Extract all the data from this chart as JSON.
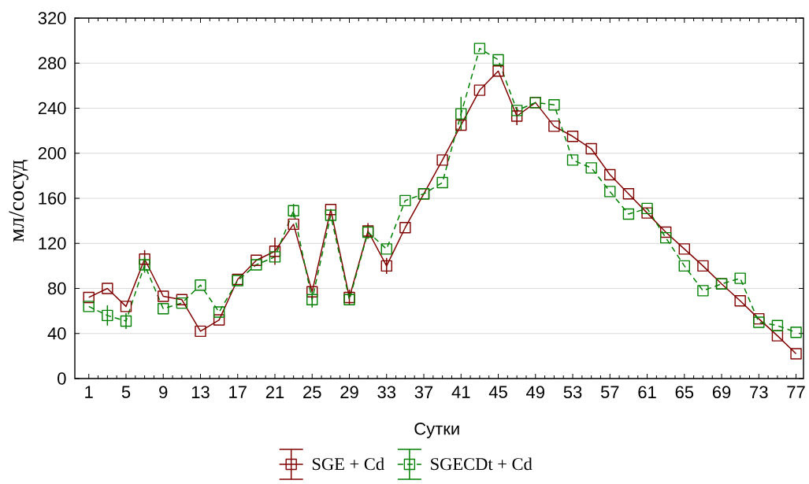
{
  "chart_data": {
    "type": "line",
    "xlabel": "Сутки",
    "ylabel": "мл/сосуд",
    "x": [
      1,
      3,
      5,
      7,
      9,
      11,
      13,
      15,
      17,
      19,
      21,
      23,
      25,
      27,
      29,
      31,
      33,
      35,
      37,
      39,
      41,
      43,
      45,
      47,
      49,
      51,
      53,
      55,
      57,
      59,
      61,
      63,
      65,
      67,
      69,
      71,
      73,
      75,
      77
    ],
    "xlim": [
      -0.5,
      77.8
    ],
    "xticks": [
      1,
      5,
      9,
      13,
      17,
      21,
      25,
      29,
      33,
      37,
      41,
      45,
      49,
      53,
      57,
      61,
      65,
      69,
      73,
      77
    ],
    "ylim": [
      0,
      320
    ],
    "yticks": [
      0,
      40,
      80,
      120,
      160,
      200,
      240,
      280,
      320
    ],
    "grid": "y",
    "legend": "bottom",
    "marker": "square",
    "series": [
      {
        "name": "SGE + Cd",
        "color": "#800000",
        "line_style": "solid",
        "values": [
          72,
          80,
          64,
          106,
          73,
          70,
          42,
          52,
          88,
          105,
          113,
          137,
          77,
          150,
          72,
          131,
          100,
          134,
          164,
          194,
          225,
          256,
          273,
          233,
          245,
          224,
          215,
          204,
          181,
          164,
          147,
          130,
          115,
          100,
          84,
          69,
          53,
          38,
          22
        ],
        "errors": [
          null,
          null,
          null,
          8,
          null,
          null,
          null,
          null,
          null,
          null,
          12,
          null,
          null,
          null,
          7,
          7,
          7,
          null,
          null,
          null,
          null,
          null,
          null,
          8,
          null,
          null,
          null,
          null,
          null,
          null,
          null,
          null,
          null,
          null,
          null,
          null,
          null,
          null,
          null
        ]
      },
      {
        "name": "SGECDt + Cd",
        "color": "#008000",
        "line_style": "dashed",
        "values": [
          64,
          56,
          51,
          101,
          62,
          67,
          83,
          59,
          87,
          101,
          108,
          149,
          70,
          145,
          70,
          130,
          115,
          158,
          164,
          174,
          235,
          293,
          283,
          238,
          245,
          243,
          194,
          187,
          166,
          146,
          151,
          125,
          100,
          78,
          84,
          89,
          50,
          47,
          41
        ],
        "errors": [
          null,
          9,
          7,
          7,
          null,
          null,
          null,
          null,
          null,
          null,
          null,
          6,
          7,
          null,
          null,
          null,
          null,
          null,
          null,
          null,
          15,
          null,
          null,
          null,
          null,
          null,
          null,
          null,
          null,
          null,
          null,
          null,
          null,
          null,
          null,
          null,
          null,
          null,
          null
        ]
      }
    ]
  }
}
